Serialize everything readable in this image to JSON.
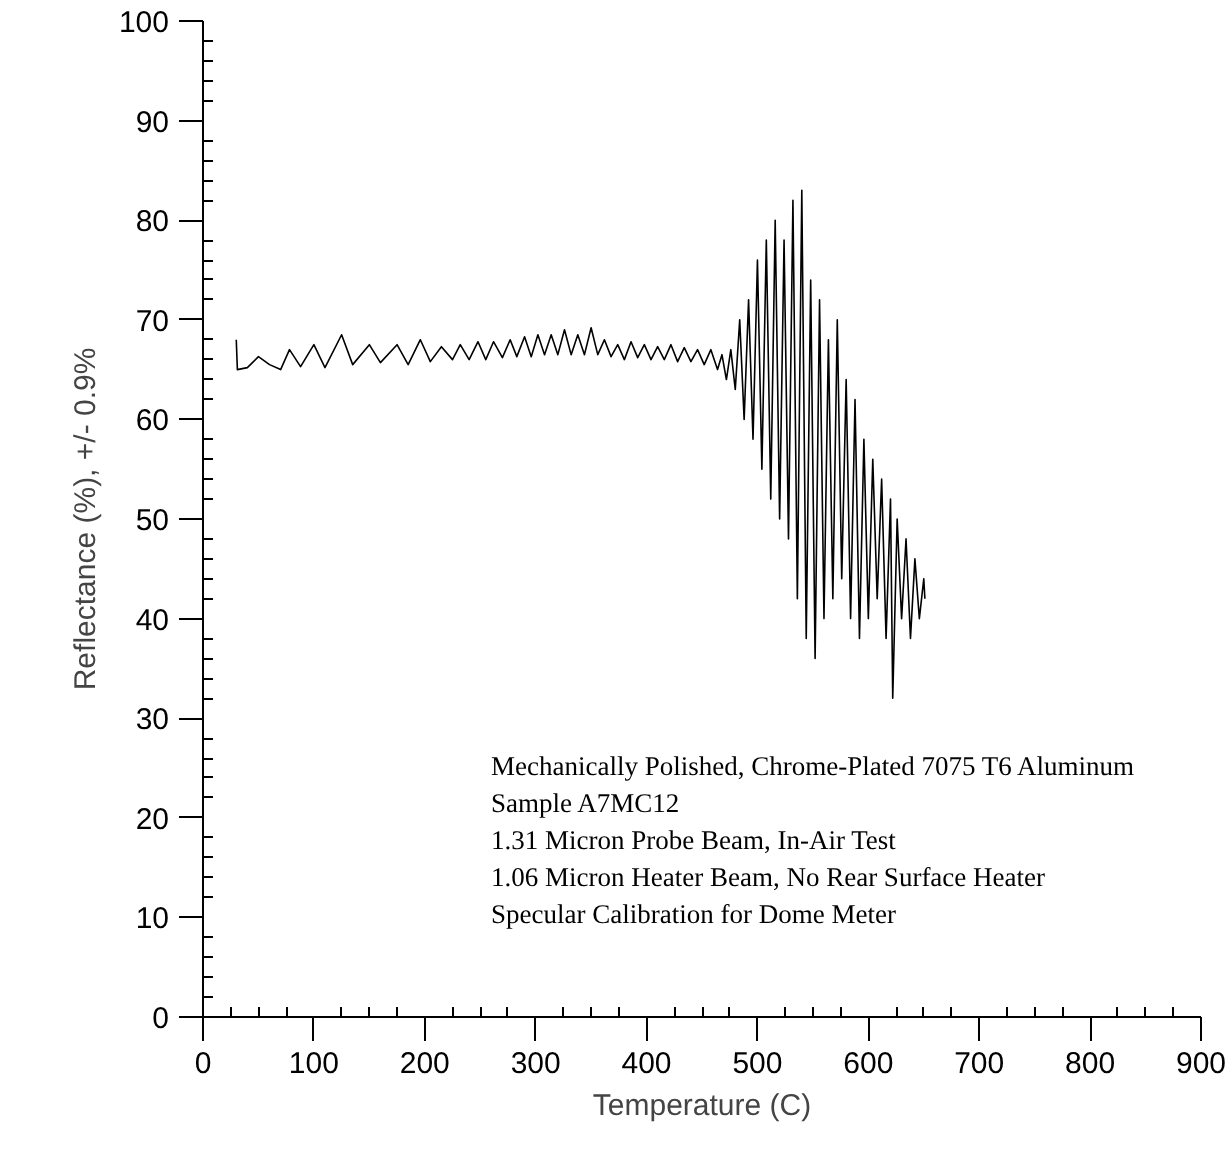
{
  "chart_data": {
    "type": "line",
    "xlabel": "Temperature (C)",
    "ylabel": "Reflectance (%), +/- 0.9%",
    "xlim": [
      0,
      900
    ],
    "xticks": [
      0,
      100,
      200,
      300,
      400,
      500,
      600,
      700,
      800,
      900
    ],
    "ylim": [
      0,
      100
    ],
    "yticks": [
      0,
      10,
      20,
      30,
      40,
      50,
      60,
      70,
      80,
      90,
      100
    ],
    "grid": false,
    "annotations": [
      "Mechanically Polished, Chrome-Plated 7075 T6 Aluminum",
      "Sample A7MC12",
      "1.31 Micron Probe Beam, In-Air Test",
      "1.06 Micron Heater Beam, No Rear Surface Heater",
      "Specular Calibration for Dome Meter"
    ],
    "series": [
      {
        "color": "#000000",
        "x": [
          30,
          31,
          40,
          50,
          60,
          70,
          78,
          88,
          100,
          110,
          125,
          135,
          150,
          160,
          175,
          185,
          196,
          205,
          215,
          225,
          232,
          240,
          248,
          255,
          262,
          270,
          277,
          283,
          290,
          296,
          302,
          308,
          314,
          320,
          326,
          332,
          338,
          344,
          350,
          356,
          362,
          368,
          374,
          380,
          386,
          392,
          398,
          404,
          410,
          416,
          422,
          428,
          434,
          440,
          446,
          452,
          458,
          464,
          468,
          472,
          476,
          480,
          484,
          488,
          492,
          496,
          500,
          504,
          508,
          512,
          516,
          520,
          524,
          528,
          532,
          536,
          540,
          544,
          548,
          552,
          556,
          560,
          564,
          568,
          572,
          576,
          580,
          584,
          588,
          592,
          596,
          600,
          604,
          608,
          612,
          616,
          620,
          622,
          626,
          630,
          634,
          638,
          642,
          646,
          650,
          651
        ],
        "values": [
          68,
          65,
          65.2,
          66.3,
          65.5,
          65,
          67,
          65.3,
          67.5,
          65.2,
          68.5,
          65.5,
          67.5,
          65.7,
          67.5,
          65.5,
          68,
          65.8,
          67.3,
          66,
          67.5,
          66,
          67.8,
          66,
          67.8,
          66.2,
          68,
          66.3,
          68.3,
          66.3,
          68.5,
          66.5,
          68.5,
          66.5,
          69,
          66.5,
          68.5,
          66.5,
          69.2,
          66.5,
          68,
          66.3,
          67.5,
          66,
          67.8,
          66.2,
          67.5,
          66,
          67.3,
          66,
          67.5,
          65.8,
          67.2,
          65.8,
          67,
          65.5,
          67,
          65,
          66.5,
          64,
          67,
          63,
          70,
          60,
          72,
          58,
          76,
          55,
          78,
          52,
          80,
          50,
          78,
          48,
          82,
          42,
          83,
          38,
          74,
          36,
          72,
          40,
          68,
          42,
          70,
          44,
          64,
          40,
          62,
          38,
          58,
          40,
          56,
          42,
          54,
          38,
          52,
          32,
          50,
          40,
          48,
          38,
          46,
          40,
          44,
          42
        ]
      }
    ]
  }
}
